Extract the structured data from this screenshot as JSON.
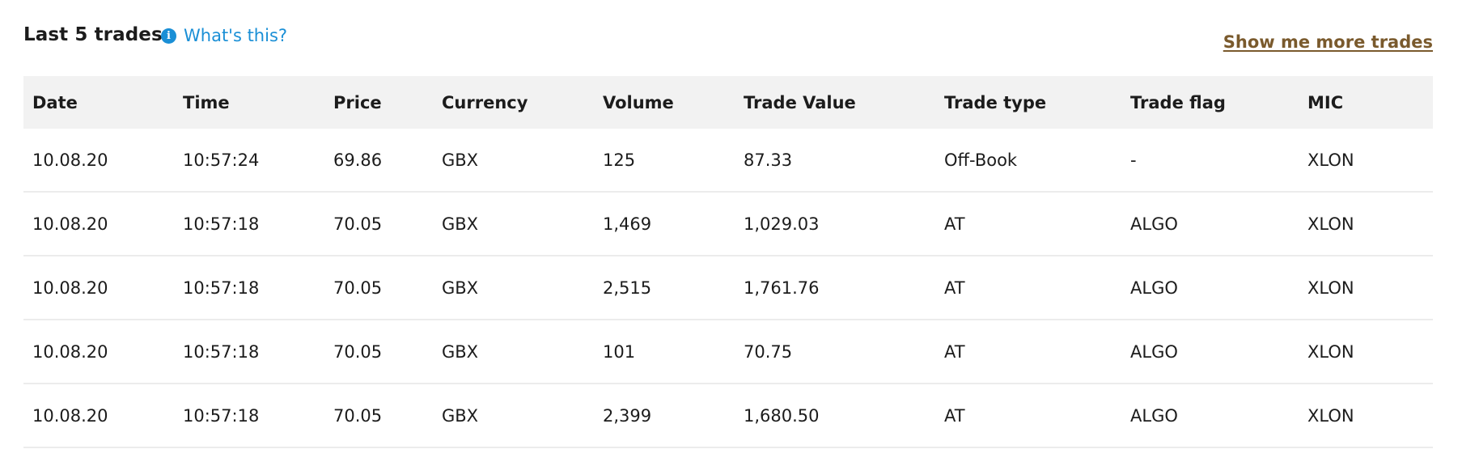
{
  "header": {
    "title": "Last 5 trades",
    "info_label": "What's this?",
    "more_link": "Show me more trades"
  },
  "table": {
    "columns": [
      "Date",
      "Time",
      "Price",
      "Currency",
      "Volume",
      "Trade Value",
      "Trade type",
      "Trade flag",
      "MIC"
    ],
    "rows": [
      [
        "10.08.20",
        "10:57:24",
        "69.86",
        "GBX",
        "125",
        "87.33",
        "Off-Book",
        "-",
        "XLON"
      ],
      [
        "10.08.20",
        "10:57:18",
        "70.05",
        "GBX",
        "1,469",
        "1,029.03",
        "AT",
        "ALGO",
        "XLON"
      ],
      [
        "10.08.20",
        "10:57:18",
        "70.05",
        "GBX",
        "2,515",
        "1,761.76",
        "AT",
        "ALGO",
        "XLON"
      ],
      [
        "10.08.20",
        "10:57:18",
        "70.05",
        "GBX",
        "101",
        "70.75",
        "AT",
        "ALGO",
        "XLON"
      ],
      [
        "10.08.20",
        "10:57:18",
        "70.05",
        "GBX",
        "2,399",
        "1,680.50",
        "AT",
        "ALGO",
        "XLON"
      ]
    ]
  },
  "colors": {
    "link": "#1a8fd6",
    "more_link": "#7a5a2d",
    "header_bg": "#f2f2f2",
    "row_border": "#ececec"
  }
}
